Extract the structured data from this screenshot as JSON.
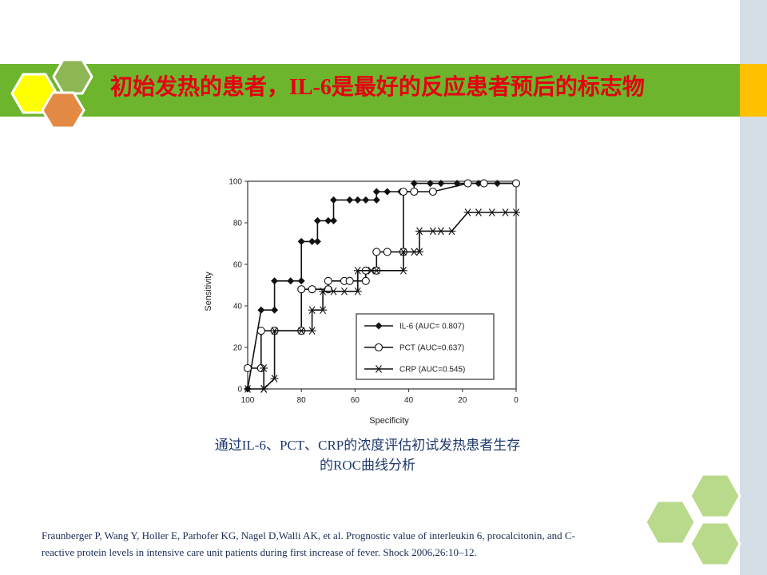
{
  "slide": {
    "title": "初始发热的患者，IL-6是最好的反应患者预后的标志物",
    "caption_line1": "通过IL-6、PCT、CRP的浓度评估初试发热患者生存",
    "caption_line2": "的ROC曲线分析",
    "citation_line1": "Fraunberger P, Wang Y, Holler E, Parhofer KG, Nagel D,Walli AK, et al. Prognostic value of interleukin 6, procalcitonin, and C-",
    "citation_line2": "reactive protein levels in intensive care unit patients during first increase of fever. Shock 2006,26:10–12."
  },
  "colors": {
    "title_bar": "#6cb52d",
    "title_text": "#e50012",
    "accent_tab": "#ffc000",
    "hex_yellow": "#ffff00",
    "hex_green": "#8db654",
    "hex_orange": "#e28a43",
    "hex_light_green": "#b8da8a"
  },
  "chart_data": {
    "type": "line",
    "xlabel": "Specificity",
    "ylabel": "Sensitivity",
    "xlim": [
      100,
      0
    ],
    "ylim": [
      0,
      100
    ],
    "x_ticks": [
      "100",
      "80",
      "60",
      "40",
      "20",
      "0"
    ],
    "y_ticks": [
      "0",
      "20",
      "40",
      "60",
      "80",
      "100"
    ],
    "legend_position": "bottom-right",
    "series": [
      {
        "name": "IL-6 (AUC= 0.807)",
        "marker": "filled-diamond",
        "points": [
          [
            100,
            0
          ],
          [
            95,
            38
          ],
          [
            90,
            38
          ],
          [
            90,
            52
          ],
          [
            84,
            52
          ],
          [
            80,
            52
          ],
          [
            80,
            71
          ],
          [
            76,
            71
          ],
          [
            74,
            71
          ],
          [
            74,
            81
          ],
          [
            70,
            81
          ],
          [
            68,
            81
          ],
          [
            68,
            91
          ],
          [
            62,
            91
          ],
          [
            59,
            91
          ],
          [
            56,
            91
          ],
          [
            52,
            91
          ],
          [
            52,
            95
          ],
          [
            48,
            95
          ],
          [
            43,
            95
          ],
          [
            38,
            95
          ],
          [
            38,
            99
          ],
          [
            32,
            99
          ],
          [
            28,
            99
          ],
          [
            22,
            99
          ],
          [
            14,
            99
          ],
          [
            7,
            99
          ],
          [
            0,
            99
          ]
        ]
      },
      {
        "name": "PCT (AUC=0.637)",
        "marker": "open-circle",
        "points": [
          [
            100,
            10
          ],
          [
            95,
            10
          ],
          [
            95,
            28
          ],
          [
            90,
            28
          ],
          [
            80,
            28
          ],
          [
            80,
            48
          ],
          [
            76,
            48
          ],
          [
            70,
            48
          ],
          [
            70,
            52
          ],
          [
            64,
            52
          ],
          [
            62,
            52
          ],
          [
            56,
            52
          ],
          [
            56,
            57
          ],
          [
            52,
            57
          ],
          [
            52,
            66
          ],
          [
            48,
            66
          ],
          [
            42,
            66
          ],
          [
            42,
            95
          ],
          [
            38,
            95
          ],
          [
            31,
            95
          ],
          [
            18,
            99
          ],
          [
            12,
            99
          ],
          [
            0,
            99
          ]
        ]
      },
      {
        "name": "CRP (AUC=0.545)",
        "marker": "asterisk",
        "points": [
          [
            100,
            0
          ],
          [
            94,
            0
          ],
          [
            94,
            10
          ],
          [
            94,
            0
          ],
          [
            90,
            5
          ],
          [
            90,
            28
          ],
          [
            80,
            28
          ],
          [
            76,
            28
          ],
          [
            76,
            38
          ],
          [
            72,
            38
          ],
          [
            72,
            47
          ],
          [
            68,
            47
          ],
          [
            64,
            47
          ],
          [
            59,
            47
          ],
          [
            59,
            57
          ],
          [
            54,
            57
          ],
          [
            52,
            57
          ],
          [
            42,
            57
          ],
          [
            42,
            66
          ],
          [
            38,
            66
          ],
          [
            36,
            66
          ],
          [
            36,
            76
          ],
          [
            31,
            76
          ],
          [
            28,
            76
          ],
          [
            24,
            76
          ],
          [
            18,
            85
          ],
          [
            14,
            85
          ],
          [
            9,
            85
          ],
          [
            4,
            85
          ],
          [
            0,
            85
          ]
        ]
      }
    ]
  }
}
